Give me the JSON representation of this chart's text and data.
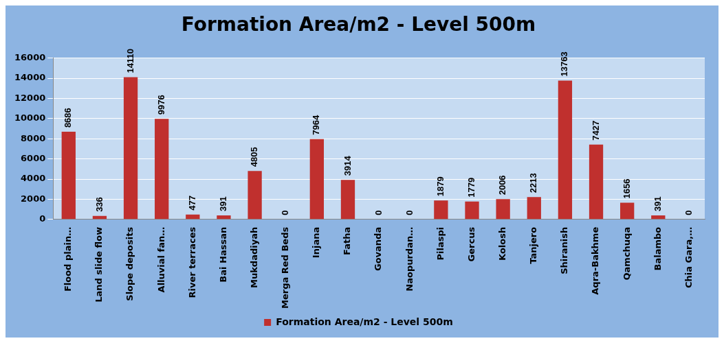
{
  "chart_data": {
    "type": "bar",
    "title": "Formation Area/m2 - Level 500m",
    "categories": [
      "Flood plain…",
      "Land slide flow",
      "Slope deposits",
      "Alluvial fan…",
      "River terraces",
      "Bai Hassan",
      "Mukdadiyah",
      "Merga Red Beds",
      "Injana",
      "Fatha",
      "Govanda",
      "Naopurdan…",
      "Pilaspi",
      "Gercus",
      "Kolosh",
      "Tanjero",
      "Shiranish",
      "Aqra-Bakhme",
      "Qamchuqa",
      "Balambo",
      "Chia Gara,…"
    ],
    "series": [
      {
        "name": "Formation Area/m2 - Level 500m",
        "color": "#c0302e",
        "values": [
          8686,
          336,
          14110,
          9976,
          477,
          391,
          4805,
          0,
          7964,
          3914,
          0,
          0,
          1879,
          1779,
          2006,
          2213,
          13763,
          7427,
          1656,
          391,
          0
        ]
      }
    ],
    "ylim": [
      0,
      16000
    ],
    "yticks": [
      0,
      2000,
      4000,
      6000,
      8000,
      10000,
      12000,
      14000,
      16000
    ],
    "grid": "y",
    "legend": "bottom",
    "data_labels": true
  }
}
